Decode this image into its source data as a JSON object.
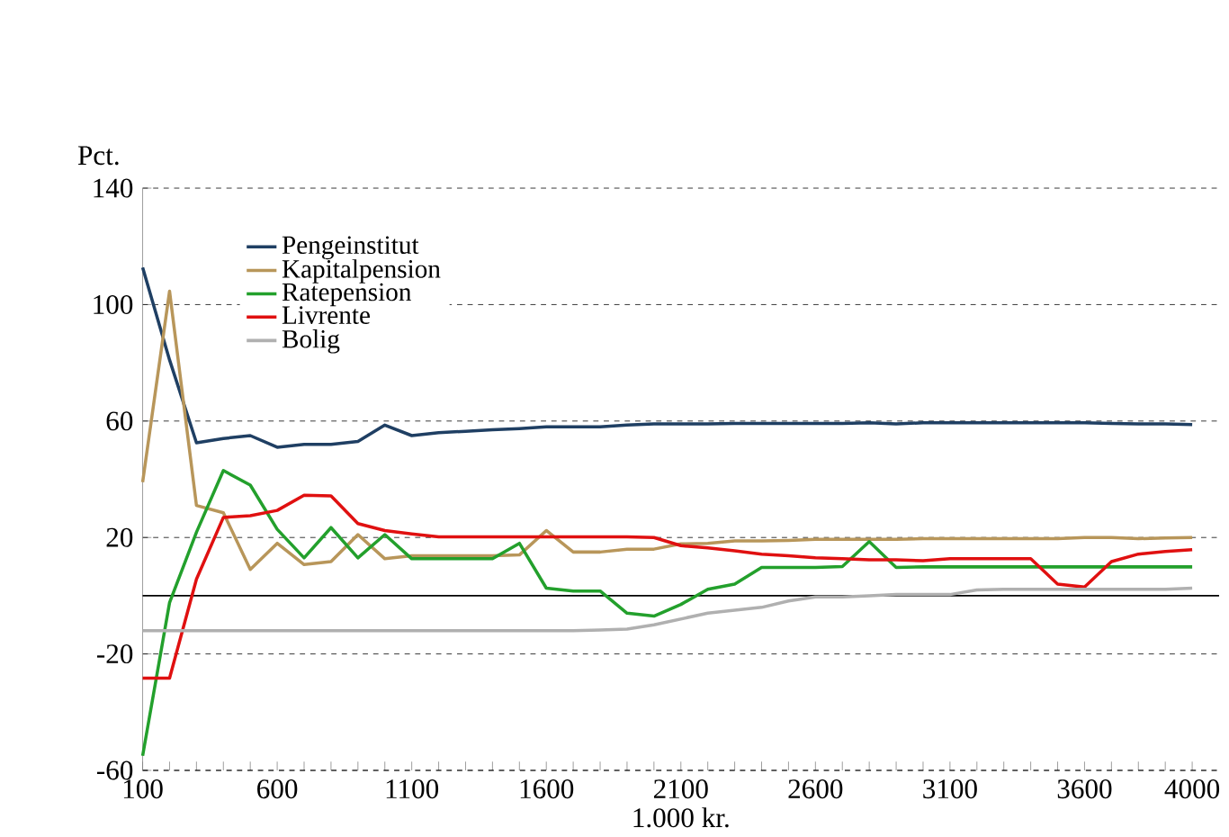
{
  "chart_data": {
    "type": "line",
    "ylabel": "Pct.",
    "xlabel": "1.000 kr.",
    "x": [
      100,
      200,
      300,
      400,
      500,
      600,
      700,
      800,
      900,
      1000,
      1100,
      1200,
      1300,
      1400,
      1500,
      1600,
      1700,
      1800,
      1900,
      2000,
      2100,
      2200,
      2300,
      2400,
      2500,
      2600,
      2700,
      2800,
      2900,
      3000,
      3100,
      3200,
      3300,
      3400,
      3500,
      3600,
      3700,
      3800,
      3900,
      4000
    ],
    "series": [
      {
        "name": "Pengeinstitut",
        "color": "#1f3f63",
        "values": [
          112.7,
          81,
          52.5,
          54,
          55,
          51,
          52,
          52,
          53,
          58.6,
          55,
          56,
          56.5,
          57,
          57.4,
          58,
          58,
          58,
          58.6,
          59,
          59,
          59,
          59.2,
          59.2,
          59.2,
          59.2,
          59.2,
          59.4,
          59,
          59.4,
          59.4,
          59.4,
          59.4,
          59.4,
          59.4,
          59.4,
          59.2,
          59,
          59,
          58.8
        ]
      },
      {
        "name": "Kapitalpension",
        "color": "#b8965a",
        "values": [
          39,
          104.6,
          31,
          28.5,
          9,
          18,
          10.7,
          11.7,
          21,
          12.7,
          13.7,
          13.7,
          13.7,
          13.7,
          14,
          22.4,
          15,
          15,
          16,
          16,
          17.8,
          18,
          18.8,
          18.8,
          19,
          19.4,
          19.4,
          19.4,
          19.4,
          19.6,
          19.6,
          19.6,
          19.6,
          19.6,
          19.6,
          20,
          20,
          19.6,
          19.8,
          20
        ]
      },
      {
        "name": "Ratepension",
        "color": "#23a02c",
        "values": [
          -55,
          -2.4,
          21.8,
          43,
          38,
          22.8,
          13,
          23.4,
          13,
          21,
          12.7,
          12.7,
          12.7,
          12.7,
          18,
          2.6,
          1.6,
          1.6,
          -6,
          -7,
          -3,
          2.2,
          4,
          9.7,
          9.7,
          9.7,
          10,
          18.6,
          9.7,
          9.9,
          9.9,
          9.9,
          9.9,
          9.9,
          9.9,
          9.9,
          9.9,
          9.9,
          9.9,
          9.9
        ]
      },
      {
        "name": "Livrente",
        "color": "#e01010",
        "values": [
          -28.3,
          -28.3,
          5.7,
          26.9,
          27.5,
          29.3,
          34.5,
          34.3,
          24.8,
          22.4,
          21.2,
          20.2,
          20.2,
          20.2,
          20.2,
          20.2,
          20.2,
          20.2,
          20.2,
          20,
          17.2,
          16.4,
          15.4,
          14.3,
          13.7,
          13,
          12.7,
          12.3,
          12.3,
          12,
          12.7,
          12.7,
          12.7,
          12.7,
          4,
          3,
          11.7,
          14.3,
          15.2,
          15.8
        ]
      },
      {
        "name": "Bolig",
        "color": "#b0b0b0",
        "values": [
          -12,
          -12,
          -12,
          -12,
          -12,
          -12,
          -12,
          -12,
          -12,
          -12,
          -12,
          -12,
          -12,
          -12,
          -12,
          -12,
          -12,
          -11.8,
          -11.5,
          -10,
          -8,
          -6,
          -5,
          -4,
          -1.8,
          -0.4,
          -0.4,
          0,
          0.4,
          0.4,
          0.4,
          2,
          2.2,
          2.2,
          2.2,
          2.2,
          2.2,
          2.2,
          2.2,
          2.6
        ]
      }
    ],
    "xlim": [
      100,
      4100
    ],
    "ylim": [
      -60,
      140
    ],
    "xticks": [
      100,
      {
        "value": 200,
        "label": null
      },
      {
        "value": 300,
        "label": null
      },
      {
        "value": 400,
        "label": null
      },
      {
        "value": 500,
        "label": null
      },
      600,
      {
        "value": 700,
        "label": null
      },
      {
        "value": 800,
        "label": null
      },
      {
        "value": 900,
        "label": null
      },
      {
        "value": 1000,
        "label": null
      },
      1100,
      {
        "value": 1200,
        "label": null
      },
      {
        "value": 1300,
        "label": null
      },
      {
        "value": 1400,
        "label": null
      },
      {
        "value": 1500,
        "label": null
      },
      1600,
      {
        "value": 1700,
        "label": null
      },
      {
        "value": 1800,
        "label": null
      },
      {
        "value": 1900,
        "label": null
      },
      {
        "value": 2000,
        "label": null
      },
      2100,
      {
        "value": 2200,
        "label": null
      },
      {
        "value": 2300,
        "label": null
      },
      {
        "value": 2400,
        "label": null
      },
      {
        "value": 2500,
        "label": null
      },
      2600,
      {
        "value": 2700,
        "label": null
      },
      {
        "value": 2800,
        "label": null
      },
      {
        "value": 2900,
        "label": null
      },
      {
        "value": 3000,
        "label": null
      },
      3100,
      {
        "value": 3200,
        "label": null
      },
      {
        "value": 3300,
        "label": null
      },
      {
        "value": 3400,
        "label": null
      },
      {
        "value": 3500,
        "label": null
      },
      3600,
      {
        "value": 3700,
        "label": null
      },
      {
        "value": 3800,
        "label": null
      },
      {
        "value": 3900,
        "label": null
      },
      4000
    ],
    "yticks": [
      -60,
      -20,
      20,
      60,
      100,
      140
    ],
    "ref_lines": [
      {
        "axis": "y",
        "value": 0,
        "line_style": "solid",
        "color": "#000000"
      }
    ],
    "grid": "y",
    "legend": "top left",
    "line_style": "solid",
    "marker": "none"
  }
}
